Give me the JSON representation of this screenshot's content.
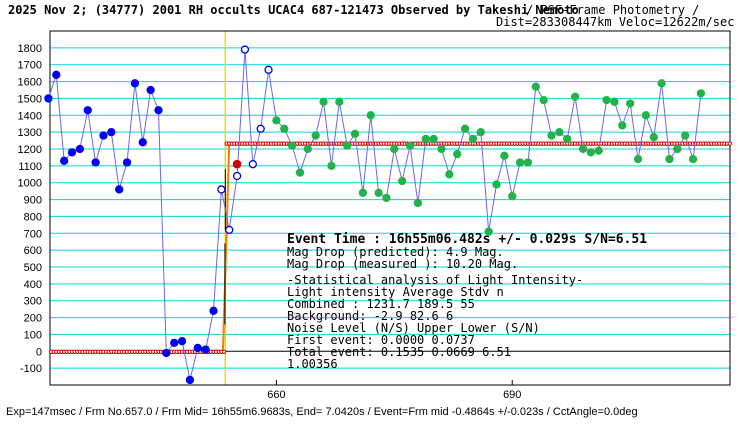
{
  "header": {
    "title": "2025 Nov 2; (34777) 2001 RH occults UCAC4 687-121473 Observed by Takeshi Nemoto",
    "method": "/ PSF-Frame Photometry /",
    "distance": "Dist=283308447km Veloc=12622m/sec"
  },
  "footer": {
    "text": "Exp=147msec / Frm No.657.0 / Frm Mid= 16h55m6.9683s, End= 7.0420s / Event=Frm mid -0.4864s +/-0.023s / CctAngle=0.0deg"
  },
  "info": {
    "event_time": "Event Time : 16h55m06.482s +/- 0.029s  S/N=6.51",
    "mag_drop_pred": "Mag Drop (predicted):  4.9   Mag.",
    "mag_drop_meas": "Mag Drop (measured ): 10.20  Mag.",
    "stat_title": "-Statistical analysis of Light Intensity-",
    "li_header": "Light intensity     Average   Stdv      n",
    "combined": "  Combined  :        1231.7    189.5     55",
    "background": "  Background:          -2.9     82.6      6",
    "noise_header": "Noise Level (N/S)   Upper     Lower    (S/N)",
    "first_event": "  First event:       0.0000    0.0737",
    "total_event": "  Total event:       0.1535    0.0669   6.51",
    "ratio": "1.00356"
  },
  "colors": {
    "grid": "#00d8d8",
    "line": "#6a6ae0",
    "before": "#0000ee",
    "after": "#22b24c",
    "model": "#cc0000",
    "event_marker": "#e0e000",
    "transition": "#ff7f00"
  },
  "chart_data": {
    "type": "line",
    "ylim": [
      -200,
      1900
    ],
    "yticks": [
      -100,
      0,
      100,
      200,
      300,
      400,
      500,
      600,
      700,
      800,
      900,
      1000,
      1100,
      1200,
      1300,
      1400,
      1500,
      1600,
      1700,
      1800
    ],
    "xlim": [
      631.2,
      717.7
    ],
    "xticks": [
      660,
      690
    ],
    "event_frame": 653.5,
    "series": [
      {
        "name": "",
        "color": "#0000ee",
        "points": [
          [
            631,
            1500
          ],
          [
            632,
            1640
          ],
          [
            633,
            1130
          ],
          [
            634,
            1180
          ],
          [
            635,
            1200
          ],
          [
            636,
            1430
          ],
          [
            637,
            1120
          ],
          [
            638,
            1280
          ],
          [
            639,
            1300
          ],
          [
            640,
            960
          ],
          [
            641,
            1120
          ],
          [
            642,
            1590
          ],
          [
            643,
            1240
          ],
          [
            644,
            1550
          ],
          [
            645,
            1430
          ],
          [
            646,
            -10
          ],
          [
            647,
            50
          ],
          [
            648,
            60
          ],
          [
            649,
            -170
          ],
          [
            650,
            20
          ],
          [
            651,
            10
          ],
          [
            652,
            240
          ],
          [
            653,
            960
          ],
          [
            654,
            720
          ],
          [
            655,
            1040
          ],
          [
            656,
            1790
          ],
          [
            657,
            1110
          ],
          [
            658,
            1320
          ],
          [
            659,
            1670
          ]
        ]
      },
      {
        "name": "",
        "color": "#22b24c",
        "points": [
          [
            660,
            1370
          ],
          [
            661,
            1320
          ],
          [
            662,
            1220
          ],
          [
            663,
            1060
          ],
          [
            664,
            1200
          ],
          [
            665,
            1280
          ],
          [
            666,
            1480
          ],
          [
            667,
            1100
          ],
          [
            668,
            1480
          ],
          [
            669,
            1220
          ],
          [
            670,
            1290
          ],
          [
            671,
            940
          ],
          [
            672,
            1400
          ],
          [
            673,
            940
          ],
          [
            674,
            910
          ],
          [
            675,
            1200
          ],
          [
            676,
            1010
          ],
          [
            677,
            1220
          ],
          [
            678,
            880
          ],
          [
            679,
            1260
          ],
          [
            680,
            1260
          ],
          [
            681,
            1200
          ],
          [
            682,
            1050
          ],
          [
            683,
            1170
          ],
          [
            684,
            1320
          ],
          [
            685,
            1260
          ],
          [
            686,
            1300
          ],
          [
            687,
            710
          ],
          [
            688,
            990
          ],
          [
            689,
            1160
          ],
          [
            690,
            920
          ],
          [
            691,
            1120
          ],
          [
            692,
            1120
          ],
          [
            693,
            1570
          ],
          [
            694,
            1490
          ],
          [
            695,
            1280
          ],
          [
            696,
            1300
          ],
          [
            697,
            1260
          ],
          [
            698,
            1510
          ],
          [
            699,
            1200
          ],
          [
            700,
            1180
          ],
          [
            701,
            1190
          ],
          [
            702,
            1490
          ],
          [
            703,
            1480
          ],
          [
            704,
            1340
          ],
          [
            705,
            1470
          ],
          [
            706,
            1140
          ],
          [
            707,
            1400
          ],
          [
            708,
            1270
          ],
          [
            709,
            1590
          ],
          [
            710,
            1140
          ],
          [
            711,
            1200
          ],
          [
            712,
            1280
          ],
          [
            713,
            1140
          ],
          [
            714,
            1530
          ]
        ]
      }
    ],
    "highlight_point": [
      655,
      1110
    ],
    "model_levels": {
      "before": -2.9,
      "after": 1231.7
    }
  }
}
